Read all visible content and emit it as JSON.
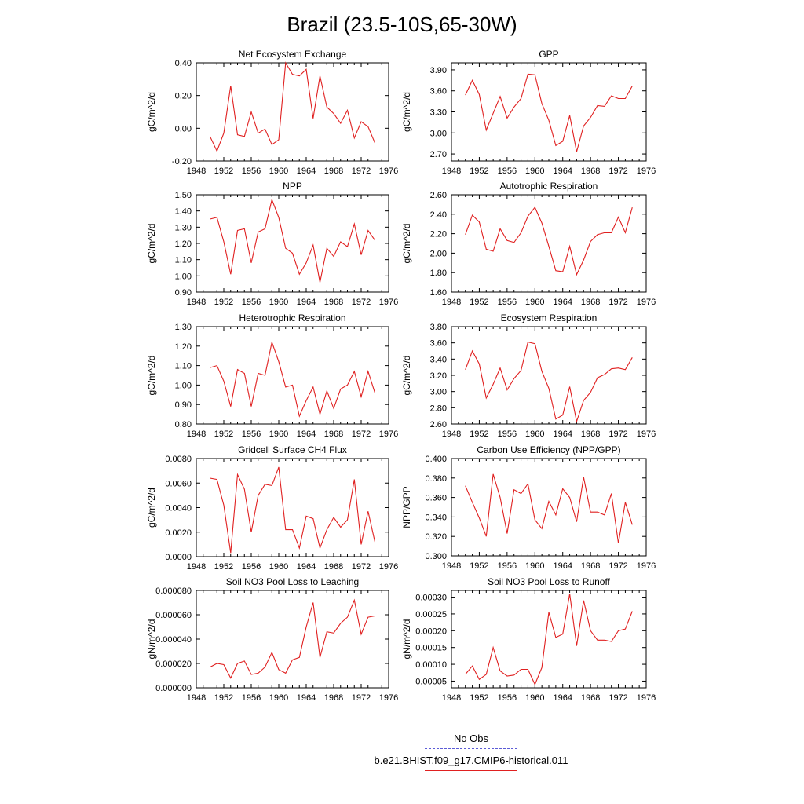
{
  "figure": {
    "title": "Brazil (23.5-10S,65-30W)"
  },
  "legend": {
    "items": [
      {
        "label": "No Obs",
        "color": "#5b5bd6",
        "style": "dashed"
      },
      {
        "label": "b.e21.BHIST.f09_g17.CMIP6-historical.011",
        "color": "#e02020",
        "style": "solid"
      }
    ]
  },
  "chart_data": [
    {
      "type": "line",
      "title": "Net Ecosystem Exchange",
      "ylabel": "gC/m^2/d",
      "xlim": [
        1948,
        1976
      ],
      "ylim": [
        -0.2,
        0.4
      ],
      "xticks": [
        "1948",
        "1952",
        "1956",
        "1960",
        "1964",
        "1968",
        "1972",
        "1976"
      ],
      "yticks": [
        "-0.20",
        "0.00",
        "0.20",
        "0.40"
      ],
      "x": [
        1950,
        1951,
        1952,
        1953,
        1954,
        1955,
        1956,
        1957,
        1958,
        1959,
        1960,
        1961,
        1962,
        1963,
        1964,
        1965,
        1966,
        1967,
        1968,
        1969,
        1970,
        1971,
        1972,
        1973,
        1974
      ],
      "series": [
        {
          "color": "#e02020",
          "values": [
            -0.05,
            -0.14,
            -0.03,
            0.26,
            -0.04,
            -0.05,
            0.1,
            -0.03,
            -0.005,
            -0.1,
            -0.07,
            0.4,
            0.33,
            0.32,
            0.36,
            0.06,
            0.32,
            0.13,
            0.09,
            0.03,
            0.11,
            -0.06,
            0.04,
            0.01,
            -0.09
          ]
        }
      ]
    },
    {
      "type": "line",
      "title": "GPP",
      "ylabel": "gC/m^2/d",
      "xlim": [
        1948,
        1976
      ],
      "ylim": [
        2.6,
        4.0
      ],
      "xticks": [
        "1948",
        "1952",
        "1956",
        "1960",
        "1964",
        "1968",
        "1972",
        "1976"
      ],
      "yticks": [
        "2.70",
        "3.00",
        "3.30",
        "3.60",
        "3.90"
      ],
      "x": [
        1950,
        1951,
        1952,
        1953,
        1954,
        1955,
        1956,
        1957,
        1958,
        1959,
        1960,
        1961,
        1962,
        1963,
        1964,
        1965,
        1966,
        1967,
        1968,
        1969,
        1970,
        1971,
        1972,
        1973,
        1974
      ],
      "series": [
        {
          "color": "#e02020",
          "values": [
            3.54,
            3.75,
            3.55,
            3.04,
            3.28,
            3.52,
            3.21,
            3.37,
            3.49,
            3.84,
            3.83,
            3.42,
            3.18,
            2.82,
            2.88,
            3.25,
            2.73,
            3.1,
            3.22,
            3.39,
            3.38,
            3.53,
            3.49,
            3.49,
            3.67
          ]
        }
      ]
    },
    {
      "type": "line",
      "title": "NPP",
      "ylabel": "gC/m^2/d",
      "xlim": [
        1948,
        1976
      ],
      "ylim": [
        0.9,
        1.5
      ],
      "xticks": [
        "1948",
        "1952",
        "1956",
        "1960",
        "1964",
        "1968",
        "1972",
        "1976"
      ],
      "yticks": [
        "0.90",
        "1.00",
        "1.10",
        "1.20",
        "1.30",
        "1.40",
        "1.50"
      ],
      "x": [
        1950,
        1951,
        1952,
        1953,
        1954,
        1955,
        1956,
        1957,
        1958,
        1959,
        1960,
        1961,
        1962,
        1963,
        1964,
        1965,
        1966,
        1967,
        1968,
        1969,
        1970,
        1971,
        1972,
        1973,
        1974
      ],
      "series": [
        {
          "color": "#e02020",
          "values": [
            1.35,
            1.36,
            1.21,
            1.01,
            1.28,
            1.29,
            1.08,
            1.27,
            1.29,
            1.47,
            1.36,
            1.17,
            1.14,
            1.01,
            1.08,
            1.19,
            0.96,
            1.17,
            1.12,
            1.21,
            1.18,
            1.32,
            1.13,
            1.28,
            1.22
          ]
        }
      ]
    },
    {
      "type": "line",
      "title": "Autotrophic Respiration",
      "ylabel": "gC/m^2/d",
      "xlim": [
        1948,
        1976
      ],
      "ylim": [
        1.6,
        2.6
      ],
      "xticks": [
        "1948",
        "1952",
        "1956",
        "1960",
        "1964",
        "1968",
        "1972",
        "1976"
      ],
      "yticks": [
        "1.60",
        "1.80",
        "2.00",
        "2.20",
        "2.40",
        "2.60"
      ],
      "x": [
        1950,
        1951,
        1952,
        1953,
        1954,
        1955,
        1956,
        1957,
        1958,
        1959,
        1960,
        1961,
        1962,
        1963,
        1964,
        1965,
        1966,
        1967,
        1968,
        1969,
        1970,
        1971,
        1972,
        1973,
        1974
      ],
      "series": [
        {
          "color": "#e02020",
          "values": [
            2.19,
            2.39,
            2.32,
            2.04,
            2.02,
            2.25,
            2.13,
            2.11,
            2.21,
            2.38,
            2.47,
            2.31,
            2.07,
            1.82,
            1.81,
            2.07,
            1.78,
            1.93,
            2.12,
            2.19,
            2.21,
            2.21,
            2.37,
            2.21,
            2.47
          ]
        }
      ]
    },
    {
      "type": "line",
      "title": "Heterotrophic Respiration",
      "ylabel": "gC/m^2/d",
      "xlim": [
        1948,
        1976
      ],
      "ylim": [
        0.8,
        1.3
      ],
      "xticks": [
        "1948",
        "1952",
        "1956",
        "1960",
        "1964",
        "1968",
        "1972",
        "1976"
      ],
      "yticks": [
        "0.80",
        "0.90",
        "1.00",
        "1.10",
        "1.20",
        "1.30"
      ],
      "x": [
        1950,
        1951,
        1952,
        1953,
        1954,
        1955,
        1956,
        1957,
        1958,
        1959,
        1960,
        1961,
        1962,
        1963,
        1964,
        1965,
        1966,
        1967,
        1968,
        1969,
        1970,
        1971,
        1972,
        1973,
        1974
      ],
      "series": [
        {
          "color": "#e02020",
          "values": [
            1.09,
            1.1,
            1.02,
            0.89,
            1.08,
            1.06,
            0.89,
            1.06,
            1.05,
            1.22,
            1.12,
            0.99,
            1.0,
            0.84,
            0.92,
            0.99,
            0.85,
            0.97,
            0.88,
            0.98,
            1.0,
            1.07,
            0.94,
            1.07,
            0.96
          ]
        }
      ]
    },
    {
      "type": "line",
      "title": "Ecosystem Respiration",
      "ylabel": "gC/m^2/d",
      "xlim": [
        1948,
        1976
      ],
      "ylim": [
        2.6,
        3.8
      ],
      "xticks": [
        "1948",
        "1952",
        "1956",
        "1960",
        "1964",
        "1968",
        "1972",
        "1976"
      ],
      "yticks": [
        "2.60",
        "2.80",
        "3.00",
        "3.20",
        "3.40",
        "3.60",
        "3.80"
      ],
      "x": [
        1950,
        1951,
        1952,
        1953,
        1954,
        1955,
        1956,
        1957,
        1958,
        1959,
        1960,
        1961,
        1962,
        1963,
        1964,
        1965,
        1966,
        1967,
        1968,
        1969,
        1970,
        1971,
        1972,
        1973,
        1974
      ],
      "series": [
        {
          "color": "#e02020",
          "values": [
            3.27,
            3.5,
            3.34,
            2.92,
            3.09,
            3.29,
            3.02,
            3.16,
            3.26,
            3.61,
            3.59,
            3.25,
            3.04,
            2.66,
            2.71,
            3.06,
            2.63,
            2.89,
            2.99,
            3.17,
            3.21,
            3.28,
            3.29,
            3.27,
            3.42
          ]
        }
      ]
    },
    {
      "type": "line",
      "title": "Gridcell Surface CH4 Flux",
      "ylabel": "gC/m^2/d",
      "xlim": [
        1948,
        1976
      ],
      "ylim": [
        0,
        0.008
      ],
      "xticks": [
        "1948",
        "1952",
        "1956",
        "1960",
        "1964",
        "1968",
        "1972",
        "1976"
      ],
      "yticks": [
        "0.0000",
        "0.0020",
        "0.0040",
        "0.0060",
        "0.0080"
      ],
      "x": [
        1950,
        1951,
        1952,
        1953,
        1954,
        1955,
        1956,
        1957,
        1958,
        1959,
        1960,
        1961,
        1962,
        1963,
        1964,
        1965,
        1966,
        1967,
        1968,
        1969,
        1970,
        1971,
        1972,
        1973,
        1974
      ],
      "series": [
        {
          "color": "#e02020",
          "values": [
            0.0064,
            0.0063,
            0.0042,
            0.0003,
            0.0067,
            0.0055,
            0.002,
            0.005,
            0.0059,
            0.0058,
            0.0073,
            0.0022,
            0.0022,
            0.0007,
            0.0033,
            0.0031,
            0.0007,
            0.0022,
            0.0032,
            0.0024,
            0.003,
            0.0063,
            0.001,
            0.0037,
            0.0012
          ]
        }
      ]
    },
    {
      "type": "line",
      "title": "Carbon Use Efficiency (NPP/GPP)",
      "ylabel": "NPP/GPP",
      "xlim": [
        1948,
        1976
      ],
      "ylim": [
        0.3,
        0.4
      ],
      "xticks": [
        "1948",
        "1952",
        "1956",
        "1960",
        "1964",
        "1968",
        "1972",
        "1976"
      ],
      "yticks": [
        "0.300",
        "0.320",
        "0.340",
        "0.360",
        "0.380",
        "0.400"
      ],
      "x": [
        1950,
        1951,
        1952,
        1953,
        1954,
        1955,
        1956,
        1957,
        1958,
        1959,
        1960,
        1961,
        1962,
        1963,
        1964,
        1965,
        1966,
        1967,
        1968,
        1969,
        1970,
        1971,
        1972,
        1973,
        1974
      ],
      "series": [
        {
          "color": "#e02020",
          "values": [
            0.372,
            0.355,
            0.339,
            0.32,
            0.384,
            0.36,
            0.323,
            0.368,
            0.364,
            0.374,
            0.337,
            0.328,
            0.356,
            0.342,
            0.369,
            0.36,
            0.335,
            0.381,
            0.345,
            0.345,
            0.342,
            0.364,
            0.313,
            0.355,
            0.332
          ]
        }
      ]
    },
    {
      "type": "line",
      "title": "Soil NO3 Pool Loss to Leaching",
      "ylabel": "gN/m^2/d",
      "xlim": [
        1948,
        1976
      ],
      "ylim": [
        0,
        8e-05
      ],
      "xticks": [
        "1948",
        "1952",
        "1956",
        "1960",
        "1964",
        "1968",
        "1972",
        "1976"
      ],
      "yticks": [
        "0.000000",
        "0.000020",
        "0.000040",
        "0.000060",
        "0.000080"
      ],
      "x": [
        1950,
        1951,
        1952,
        1953,
        1954,
        1955,
        1956,
        1957,
        1958,
        1959,
        1960,
        1961,
        1962,
        1963,
        1964,
        1965,
        1966,
        1967,
        1968,
        1969,
        1970,
        1971,
        1972,
        1973,
        1974
      ],
      "series": [
        {
          "color": "#e02020",
          "values": [
            1.7e-05,
            2e-05,
            1.9e-05,
            8e-06,
            2e-05,
            2.2e-05,
            1.1e-05,
            1.2e-05,
            1.7e-05,
            2.9e-05,
            1.5e-05,
            1.2e-05,
            2.3e-05,
            2.5e-05,
            5e-05,
            7e-05,
            2.5e-05,
            4.6e-05,
            4.5e-05,
            5.3e-05,
            5.8e-05,
            7.2e-05,
            4.4e-05,
            5.8e-05,
            5.9e-05
          ]
        }
      ]
    },
    {
      "type": "line",
      "title": "Soil NO3 Pool Loss to Runoff",
      "ylabel": "gN/m^2/d",
      "xlim": [
        1948,
        1976
      ],
      "ylim": [
        3e-05,
        0.00032
      ],
      "xticks": [
        "1948",
        "1952",
        "1956",
        "1960",
        "1964",
        "1968",
        "1972",
        "1976"
      ],
      "yticks": [
        "0.00005",
        "0.00010",
        "0.00015",
        "0.00020",
        "0.00025",
        "0.00030"
      ],
      "x": [
        1950,
        1951,
        1952,
        1953,
        1954,
        1955,
        1956,
        1957,
        1958,
        1959,
        1960,
        1961,
        1962,
        1963,
        1964,
        1965,
        1966,
        1967,
        1968,
        1969,
        1970,
        1971,
        1972,
        1973,
        1974
      ],
      "series": [
        {
          "color": "#e02020",
          "values": [
            7e-05,
            9.5e-05,
            5.5e-05,
            7e-05,
            0.00015,
            8e-05,
            6.5e-05,
            6.8e-05,
            8.5e-05,
            8.5e-05,
            4e-05,
            9e-05,
            0.000255,
            0.00018,
            0.00019,
            0.00031,
            0.000155,
            0.00029,
            0.0002,
            0.000172,
            0.000172,
            0.000168,
            0.0002,
            0.000205,
            0.000258
          ]
        }
      ]
    }
  ]
}
